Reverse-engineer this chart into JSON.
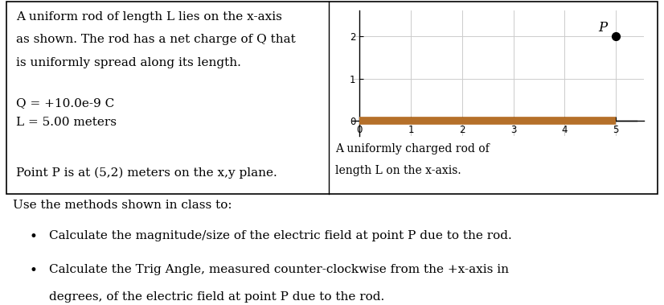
{
  "top_left_text_lines": [
    "A uniform rod of length L lies on the x-axis",
    "as shown. The rod has a net charge of Q that",
    "is uniformly spread along its length.",
    "",
    "Q = +10.0e-9 C",
    "L = 5.00 meters",
    "",
    "Point P is at (5,2) meters on the x,y plane."
  ],
  "caption_line1": "A uniformly charged rod of",
  "caption_line2": "length L on the x-axis.",
  "rod_x_start": 0,
  "rod_x_end": 5,
  "rod_y": 0,
  "rod_color": "#b5702a",
  "rod_linewidth": 7,
  "point_P_x": 5,
  "point_P_y": 2,
  "point_color": "#000000",
  "point_size": 50,
  "plot_xlim": [
    -0.15,
    5.55
  ],
  "plot_ylim": [
    -0.35,
    2.6
  ],
  "xticks": [
    0,
    1,
    2,
    3,
    4,
    5
  ],
  "yticks": [
    0,
    1,
    2
  ],
  "grid_color": "#cccccc",
  "background_color": "#ffffff",
  "bullet1": "Calculate the magnitude/size of the electric field at point P due to the rod.",
  "bullet2_line1": "Calculate the Trig Angle, measured counter-clockwise from the +x-axis in",
  "bullet2_line2": "degrees, of the electric field at point P due to the rod.",
  "use_methods_text": "Use the methods shown in class to:",
  "font_size_body": 11,
  "font_size_caption": 10,
  "font_size_axis": 8.5,
  "font_size_P_label": 12
}
